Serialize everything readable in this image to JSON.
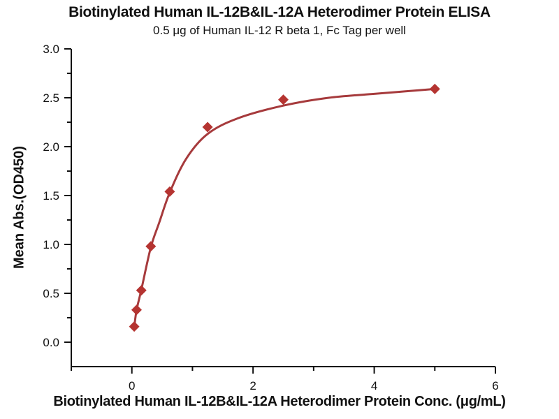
{
  "chart_data": {
    "type": "scatter",
    "title": "Biotinylated Human IL-12B&IL-12A Heterodimer Protein ELISA",
    "subtitle": "0.5 μg of Human IL-12 R beta 1, Fc Tag per well",
    "xlabel": "Biotinylated Human IL-12B&IL-12A Heterodimer Protein Conc. (μg/mL)",
    "ylabel": "Mean Abs.(OD450)",
    "xlim": [
      -1,
      6
    ],
    "ylim": [
      -0.25,
      3.0
    ],
    "grid": false,
    "legend": "none",
    "x_ticks": {
      "major": [
        0,
        2,
        4,
        6
      ],
      "labels": [
        "0",
        "2",
        "4",
        "6"
      ],
      "minor": [
        -1,
        1,
        3,
        5
      ]
    },
    "y_ticks": {
      "major": [
        0,
        0.5,
        1.0,
        1.5,
        2.0,
        2.5,
        3.0
      ],
      "labels": [
        "0.0",
        "0.5",
        "1.0",
        "1.5",
        "2.0",
        "2.5",
        "3.0"
      ],
      "minor": [
        0.25,
        0.75,
        1.25,
        1.75,
        2.25,
        2.75
      ]
    },
    "series": [
      {
        "marker": "diamond",
        "x": [
          0.039,
          0.078,
          0.156,
          0.3125,
          0.625,
          1.25,
          2.5,
          5
        ],
        "y": [
          0.16,
          0.33,
          0.53,
          0.98,
          1.54,
          2.2,
          2.48,
          2.59
        ],
        "fit_curve_samples": [
          [
            0.039,
            0.155
          ],
          [
            0.078,
            0.33
          ],
          [
            0.156,
            0.535
          ],
          [
            0.3125,
            0.97
          ],
          [
            0.45,
            1.22
          ],
          [
            0.625,
            1.53
          ],
          [
            0.9,
            1.88
          ],
          [
            1.25,
            2.13
          ],
          [
            1.75,
            2.29
          ],
          [
            2.5,
            2.42
          ],
          [
            3.25,
            2.5
          ],
          [
            4.0,
            2.54
          ],
          [
            4.5,
            2.565
          ],
          [
            5.0,
            2.59
          ]
        ]
      }
    ],
    "colors": {
      "marker": "#b53431",
      "line": "#a63a3c",
      "axis": "#111111",
      "text": "#111111"
    }
  }
}
